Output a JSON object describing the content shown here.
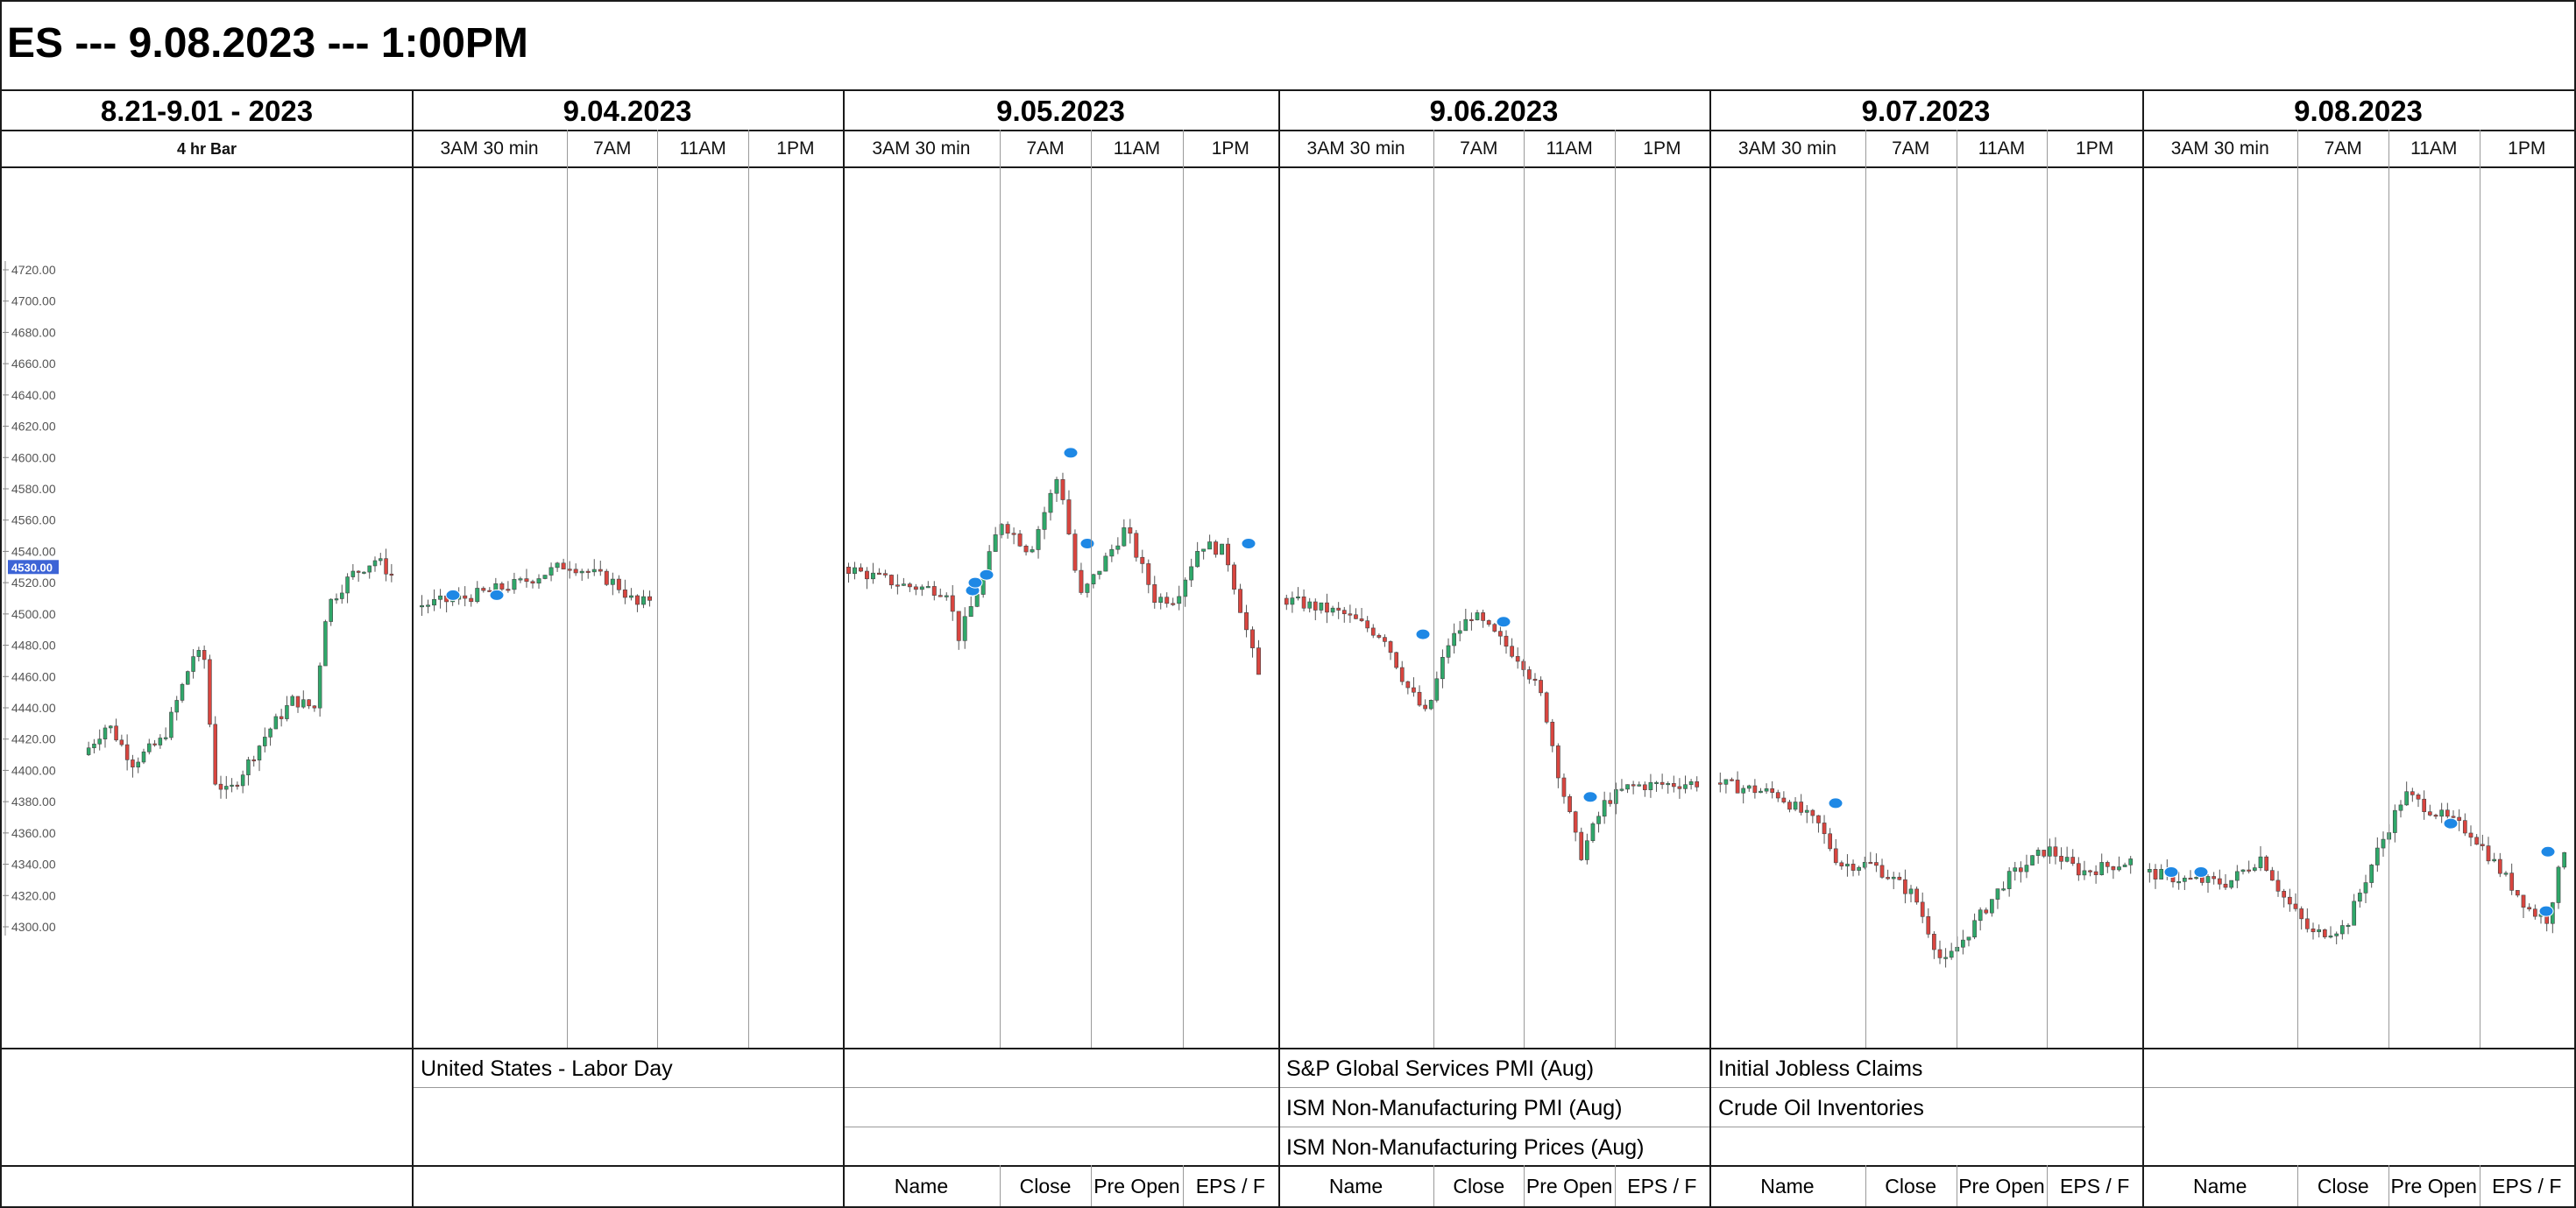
{
  "title": "ES --- 9.08.2023 --- 1:00PM",
  "first_panel": {
    "header": "8.21-9.01 - 2023",
    "sub": "4 hr Bar"
  },
  "days": [
    {
      "date": "9.04.2023",
      "sub": [
        "3AM 30 min",
        "7AM",
        "11AM",
        "1PM"
      ]
    },
    {
      "date": "9.05.2023",
      "sub": [
        "3AM 30 min",
        "7AM",
        "11AM",
        "1PM"
      ]
    },
    {
      "date": "9.06.2023",
      "sub": [
        "3AM 30 min",
        "7AM",
        "11AM",
        "1PM"
      ]
    },
    {
      "date": "9.07.2023",
      "sub": [
        "3AM 30 min",
        "7AM",
        "11AM",
        "1PM"
      ]
    },
    {
      "date": "9.08.2023",
      "sub": [
        "3AM 30 min",
        "7AM",
        "11AM",
        "1PM"
      ]
    }
  ],
  "events": {
    "day1": [
      "United States - Labor Day"
    ],
    "day2": [],
    "day3": [
      "S&P Global Services PMI (Aug)",
      "ISM Non-Manufacturing PMI (Aug)",
      "ISM Non-Manufacturing Prices (Aug)"
    ],
    "day4": [
      "Initial Jobless Claims",
      "Crude Oil Inventories"
    ],
    "day5": []
  },
  "footer_labels": [
    "Name",
    "Close",
    "Pre Open",
    "EPS / F"
  ],
  "colors": {
    "up": "#2fa86a",
    "down": "#d9453f",
    "price_tag": "#3d64d6",
    "marker": "#1e88e5"
  },
  "chart_data": {
    "type": "candlestick",
    "price_axis": {
      "ticks": [
        "4720.00",
        "4700.00",
        "4680.00",
        "4660.00",
        "4640.00",
        "4620.00",
        "4600.00",
        "4580.00",
        "4560.00",
        "4540.00",
        "4520.00",
        "4500.00",
        "4480.00",
        "4460.00",
        "4440.00",
        "4420.00",
        "4400.00",
        "4380.00",
        "4360.00",
        "4340.00",
        "4320.00",
        "4300.00"
      ],
      "current_price_label": "4530.00",
      "range": [
        4300,
        4720
      ]
    },
    "panels": [
      {
        "name": "8.21-9.01 - 2023 (4 hr)",
        "anchors": [
          [
            0,
            4410
          ],
          [
            0.08,
            4430
          ],
          [
            0.16,
            4405
          ],
          [
            0.26,
            4420
          ],
          [
            0.36,
            4475
          ],
          [
            0.4,
            4470
          ],
          [
            0.42,
            4395
          ],
          [
            0.47,
            4385
          ],
          [
            0.52,
            4400
          ],
          [
            0.6,
            4425
          ],
          [
            0.68,
            4445
          ],
          [
            0.75,
            4440
          ],
          [
            0.79,
            4505
          ],
          [
            0.87,
            4525
          ],
          [
            0.95,
            4535
          ],
          [
            1.0,
            4525
          ]
        ],
        "count": 56
      },
      {
        "name": "9.04.2023",
        "anchors": [
          [
            0,
            4505
          ],
          [
            0.2,
            4510
          ],
          [
            0.45,
            4520
          ],
          [
            0.65,
            4532
          ],
          [
            0.72,
            4528
          ],
          [
            0.85,
            4520
          ],
          [
            0.95,
            4505
          ],
          [
            1.0,
            4510
          ]
        ],
        "count": 38
      },
      {
        "name": "9.05.2023",
        "anchors": [
          [
            0,
            4530
          ],
          [
            0.15,
            4518
          ],
          [
            0.25,
            4515
          ],
          [
            0.28,
            4485
          ],
          [
            0.34,
            4525
          ],
          [
            0.38,
            4560
          ],
          [
            0.45,
            4540
          ],
          [
            0.52,
            4590
          ],
          [
            0.57,
            4510
          ],
          [
            0.62,
            4530
          ],
          [
            0.68,
            4555
          ],
          [
            0.75,
            4510
          ],
          [
            0.8,
            4510
          ],
          [
            0.86,
            4545
          ],
          [
            0.92,
            4540
          ],
          [
            1.0,
            4460
          ]
        ],
        "count": 68
      },
      {
        "name": "9.06.2023",
        "anchors": [
          [
            0,
            4510
          ],
          [
            0.15,
            4500
          ],
          [
            0.25,
            4485
          ],
          [
            0.3,
            4455
          ],
          [
            0.35,
            4435
          ],
          [
            0.4,
            4480
          ],
          [
            0.46,
            4500
          ],
          [
            0.52,
            4485
          ],
          [
            0.58,
            4470
          ],
          [
            0.63,
            4445
          ],
          [
            0.67,
            4395
          ],
          [
            0.72,
            4345
          ],
          [
            0.78,
            4380
          ],
          [
            0.84,
            4390
          ],
          [
            1.0,
            4392
          ]
        ],
        "count": 72
      },
      {
        "name": "9.07.2023",
        "anchors": [
          [
            0,
            4392
          ],
          [
            0.15,
            4385
          ],
          [
            0.25,
            4365
          ],
          [
            0.3,
            4340
          ],
          [
            0.38,
            4340
          ],
          [
            0.48,
            4320
          ],
          [
            0.55,
            4275
          ],
          [
            0.62,
            4300
          ],
          [
            0.7,
            4330
          ],
          [
            0.8,
            4350
          ],
          [
            0.88,
            4335
          ],
          [
            1.0,
            4342
          ]
        ],
        "count": 72
      },
      {
        "name": "9.08.2023",
        "anchors": [
          [
            0,
            4335
          ],
          [
            0.1,
            4330
          ],
          [
            0.2,
            4328
          ],
          [
            0.28,
            4345
          ],
          [
            0.33,
            4320
          ],
          [
            0.4,
            4295
          ],
          [
            0.48,
            4300
          ],
          [
            0.55,
            4345
          ],
          [
            0.62,
            4385
          ],
          [
            0.7,
            4372
          ],
          [
            0.78,
            4360
          ],
          [
            0.85,
            4335
          ],
          [
            0.92,
            4310
          ],
          [
            0.96,
            4305
          ],
          [
            1.0,
            4350
          ]
        ],
        "count": 72
      }
    ]
  }
}
